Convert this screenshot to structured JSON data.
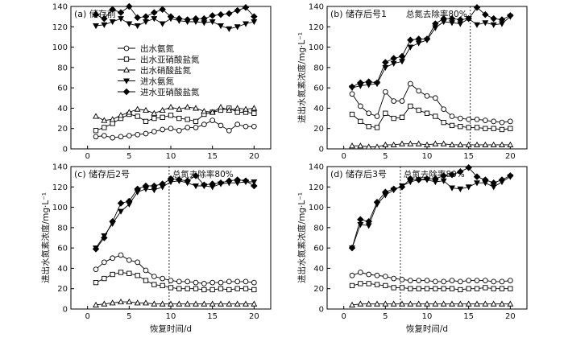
{
  "chart_data": [
    {
      "type": "line",
      "title": "(a) 储存前",
      "xlabel": "",
      "ylabel": "",
      "xlim": [
        -2,
        22
      ],
      "ylim": [
        0,
        140
      ],
      "xticks": [
        0,
        5,
        10,
        15,
        20
      ],
      "yticks": [
        0,
        20,
        40,
        60,
        80,
        100,
        120,
        140
      ],
      "legend_position": "center-left",
      "series": [
        {
          "name": "出水氨氮",
          "marker": "circle",
          "fill": "open",
          "x": [
            1,
            2,
            3,
            4,
            5,
            6,
            7,
            8,
            9,
            10,
            11,
            12,
            13,
            14,
            15,
            16,
            17,
            18,
            19,
            20
          ],
          "values": [
            12,
            13,
            11,
            12,
            13,
            14,
            15,
            17,
            19,
            20,
            18,
            21,
            21,
            24,
            28,
            23,
            18,
            24,
            22,
            22
          ]
        },
        {
          "name": "出水亚硝酸盐氮",
          "marker": "square",
          "fill": "open",
          "x": [
            1,
            2,
            3,
            4,
            5,
            6,
            7,
            8,
            9,
            10,
            11,
            12,
            13,
            14,
            15,
            16,
            17,
            18,
            19,
            20
          ],
          "values": [
            18,
            21,
            25,
            30,
            34,
            32,
            27,
            30,
            31,
            33,
            30,
            29,
            27,
            34,
            36,
            38,
            40,
            36,
            36,
            35
          ]
        },
        {
          "name": "出水硝酸盐氮",
          "marker": "triangle-up",
          "fill": "open",
          "x": [
            1,
            2,
            3,
            4,
            5,
            6,
            7,
            8,
            9,
            10,
            11,
            12,
            13,
            14,
            15,
            16,
            17,
            18,
            19,
            20
          ],
          "values": [
            32,
            28,
            29,
            33,
            36,
            39,
            38,
            35,
            38,
            41,
            39,
            41,
            40,
            37,
            36,
            41,
            38,
            40,
            39,
            40
          ]
        },
        {
          "name": "进水氨氮",
          "marker": "triangle-down",
          "fill": "solid",
          "x": [
            1,
            2,
            3,
            4,
            5,
            6,
            7,
            8,
            9,
            10,
            11,
            12,
            13,
            14,
            15,
            16,
            17,
            18,
            19,
            20
          ],
          "values": [
            121,
            122,
            125,
            128,
            123,
            121,
            125,
            128,
            123,
            128,
            126,
            125,
            125,
            124,
            125,
            121,
            118,
            120,
            123,
            125
          ]
        },
        {
          "name": "进水亚硝酸盐氮",
          "marker": "diamond",
          "fill": "solid",
          "x": [
            1,
            2,
            3,
            4,
            5,
            6,
            7,
            8,
            9,
            10,
            11,
            12,
            13,
            14,
            15,
            16,
            17,
            18,
            19,
            20
          ],
          "values": [
            132,
            128,
            137,
            134,
            140,
            129,
            130,
            134,
            137,
            130,
            128,
            127,
            128,
            128,
            131,
            132,
            133,
            136,
            139,
            130
          ]
        }
      ]
    },
    {
      "type": "line",
      "title": "(b) 储存后号1",
      "annotation": "总氮去除率80%",
      "vline_x": 15.2,
      "xlabel": "",
      "ylabel": "进出水氮素浓度/mg·L⁻¹",
      "xlim": [
        -2,
        22
      ],
      "ylim": [
        0,
        140
      ],
      "xticks": [
        0,
        5,
        10,
        15,
        20
      ],
      "yticks": [
        0,
        20,
        40,
        60,
        80,
        100,
        120,
        140
      ],
      "series": [
        {
          "name": "出水氨氮",
          "marker": "circle",
          "fill": "open",
          "x": [
            1,
            2,
            3,
            4,
            5,
            6,
            7,
            8,
            9,
            10,
            11,
            12,
            13,
            14,
            15,
            16,
            17,
            18,
            19,
            20
          ],
          "values": [
            54,
            42,
            35,
            32,
            56,
            47,
            47,
            64,
            57,
            52,
            50,
            39,
            32,
            30,
            29,
            29,
            28,
            27,
            26,
            27
          ]
        },
        {
          "name": "出水亚硝酸盐氮",
          "marker": "square",
          "fill": "open",
          "x": [
            1,
            2,
            3,
            4,
            5,
            6,
            7,
            8,
            9,
            10,
            11,
            12,
            13,
            14,
            15,
            16,
            17,
            18,
            19,
            20
          ],
          "values": [
            34,
            27,
            22,
            21,
            35,
            30,
            31,
            42,
            38,
            35,
            32,
            26,
            23,
            22,
            21,
            21,
            20,
            20,
            19,
            20
          ]
        },
        {
          "name": "出水硝酸盐氮",
          "marker": "triangle-up",
          "fill": "open",
          "x": [
            1,
            2,
            3,
            4,
            5,
            6,
            7,
            8,
            9,
            10,
            11,
            12,
            13,
            14,
            15,
            16,
            17,
            18,
            19,
            20
          ],
          "values": [
            3,
            3,
            2,
            2,
            4,
            4,
            5,
            5,
            5,
            4,
            5,
            5,
            4,
            4,
            4,
            4,
            4,
            4,
            4,
            4
          ]
        },
        {
          "name": "进水氨氮",
          "marker": "triangle-down",
          "fill": "solid",
          "x": [
            1,
            2,
            3,
            4,
            5,
            6,
            7,
            8,
            9,
            10,
            11,
            12,
            13,
            14,
            15,
            16,
            17,
            18,
            19,
            20
          ],
          "values": [
            60,
            62,
            63,
            64,
            80,
            84,
            86,
            100,
            104,
            107,
            119,
            125,
            124,
            123,
            128,
            122,
            124,
            122,
            123,
            130
          ]
        },
        {
          "name": "进水亚硝酸盐氮",
          "marker": "diamond",
          "fill": "solid",
          "x": [
            1,
            2,
            3,
            4,
            5,
            6,
            7,
            8,
            9,
            10,
            11,
            12,
            13,
            14,
            15,
            16,
            17,
            18,
            19,
            20
          ],
          "values": [
            61,
            65,
            66,
            65,
            85,
            89,
            91,
            107,
            108,
            108,
            123,
            128,
            128,
            127,
            128,
            139,
            132,
            128,
            127,
            131
          ]
        }
      ]
    },
    {
      "type": "line",
      "title": "(c) 储存后2号",
      "annotation": "总氮去除率80%",
      "vline_x": 9.8,
      "xlabel": "恢复时间/d",
      "ylabel": "进出水氮素浓度/mg·L⁻¹",
      "xlim": [
        -2,
        22
      ],
      "ylim": [
        0,
        140
      ],
      "xticks": [
        0,
        5,
        10,
        15,
        20
      ],
      "yticks": [
        0,
        20,
        40,
        60,
        80,
        100,
        120,
        140
      ],
      "series": [
        {
          "name": "出水氨氮",
          "marker": "circle",
          "fill": "open",
          "x": [
            1,
            2,
            3,
            4,
            5,
            6,
            7,
            8,
            9,
            10,
            11,
            12,
            13,
            14,
            15,
            16,
            17,
            18,
            19,
            20
          ],
          "values": [
            39,
            46,
            50,
            53,
            48,
            46,
            38,
            32,
            30,
            28,
            27,
            27,
            26,
            25,
            26,
            26,
            27,
            27,
            27,
            26
          ]
        },
        {
          "name": "出水亚硝酸盐氮",
          "marker": "square",
          "fill": "open",
          "x": [
            1,
            2,
            3,
            4,
            5,
            6,
            7,
            8,
            9,
            10,
            11,
            12,
            13,
            14,
            15,
            16,
            17,
            18,
            19,
            20
          ],
          "values": [
            26,
            30,
            34,
            36,
            35,
            33,
            28,
            24,
            23,
            21,
            20,
            20,
            20,
            19,
            19,
            20,
            19,
            20,
            20,
            19
          ]
        },
        {
          "name": "出水硝酸盐氮",
          "marker": "triangle-up",
          "fill": "open",
          "x": [
            1,
            2,
            3,
            4,
            5,
            6,
            7,
            8,
            9,
            10,
            11,
            12,
            13,
            14,
            15,
            16,
            17,
            18,
            19,
            20
          ],
          "values": [
            4,
            5,
            6,
            7,
            7,
            6,
            6,
            5,
            5,
            5,
            5,
            5,
            5,
            5,
            5,
            5,
            5,
            5,
            5,
            5
          ]
        },
        {
          "name": "进水氨氮",
          "marker": "triangle-down",
          "fill": "solid",
          "x": [
            1,
            2,
            3,
            4,
            5,
            6,
            7,
            8,
            9,
            10,
            11,
            12,
            13,
            14,
            15,
            16,
            17,
            18,
            19,
            20
          ],
          "values": [
            60,
            72,
            84,
            96,
            103,
            115,
            118,
            117,
            120,
            125,
            126,
            124,
            121,
            121,
            120,
            123,
            124,
            124,
            125,
            125
          ]
        },
        {
          "name": "进水亚硝酸盐氮",
          "marker": "diamond",
          "fill": "solid",
          "x": [
            1,
            2,
            3,
            4,
            5,
            6,
            7,
            8,
            9,
            10,
            11,
            12,
            13,
            14,
            15,
            16,
            17,
            18,
            19,
            20
          ],
          "values": [
            59,
            70,
            86,
            104,
            106,
            118,
            121,
            121,
            123,
            128,
            127,
            126,
            131,
            122,
            123,
            124,
            126,
            127,
            126,
            121
          ]
        }
      ]
    },
    {
      "type": "line",
      "title": "(d) 储存后3号",
      "annotation": "总氮去除率80%",
      "vline_x": 6.8,
      "xlabel": "恢复时间/d",
      "ylabel": "进出水氮素浓度/mg·L⁻¹",
      "xlim": [
        -2,
        22
      ],
      "ylim": [
        0,
        140
      ],
      "xticks": [
        0,
        5,
        10,
        15,
        20
      ],
      "yticks": [
        0,
        20,
        40,
        60,
        80,
        100,
        120,
        140
      ],
      "series": [
        {
          "name": "出水氨氮",
          "marker": "circle",
          "fill": "open",
          "x": [
            1,
            2,
            3,
            4,
            5,
            6,
            7,
            8,
            9,
            10,
            11,
            12,
            13,
            14,
            15,
            16,
            17,
            18,
            19,
            20
          ],
          "values": [
            33,
            36,
            34,
            33,
            32,
            30,
            29,
            28,
            28,
            28,
            27,
            27,
            28,
            27,
            28,
            28,
            28,
            27,
            27,
            28
          ]
        },
        {
          "name": "出水亚硝酸盐氮",
          "marker": "square",
          "fill": "open",
          "x": [
            1,
            2,
            3,
            4,
            5,
            6,
            7,
            8,
            9,
            10,
            11,
            12,
            13,
            14,
            15,
            16,
            17,
            18,
            19,
            20
          ],
          "values": [
            23,
            25,
            25,
            24,
            23,
            21,
            21,
            20,
            20,
            20,
            20,
            20,
            20,
            19,
            20,
            20,
            21,
            20,
            20,
            20
          ]
        },
        {
          "name": "出水硝酸盐氮",
          "marker": "triangle-up",
          "fill": "open",
          "x": [
            1,
            2,
            3,
            4,
            5,
            6,
            7,
            8,
            9,
            10,
            11,
            12,
            13,
            14,
            15,
            16,
            17,
            18,
            19,
            20
          ],
          "values": [
            4,
            5,
            5,
            5,
            5,
            5,
            5,
            5,
            5,
            5,
            5,
            5,
            5,
            5,
            5,
            5,
            5,
            5,
            5,
            5
          ]
        },
        {
          "name": "进水氨氮",
          "marker": "triangle-down",
          "fill": "solid",
          "x": [
            1,
            2,
            3,
            4,
            5,
            6,
            7,
            8,
            9,
            10,
            11,
            12,
            13,
            14,
            15,
            16,
            17,
            18,
            19,
            20
          ],
          "values": [
            60,
            83,
            82,
            103,
            112,
            117,
            121,
            125,
            127,
            127,
            125,
            126,
            119,
            118,
            120,
            124,
            124,
            120,
            125,
            130
          ]
        },
        {
          "name": "进水亚硝酸盐氮",
          "marker": "diamond",
          "fill": "solid",
          "x": [
            1,
            2,
            3,
            4,
            5,
            6,
            7,
            8,
            9,
            10,
            11,
            12,
            13,
            14,
            15,
            16,
            17,
            18,
            19,
            20
          ],
          "values": [
            60,
            88,
            86,
            105,
            115,
            118,
            120,
            128,
            127,
            128,
            128,
            131,
            132,
            135,
            139,
            130,
            127,
            124,
            127,
            131
          ]
        }
      ]
    }
  ]
}
